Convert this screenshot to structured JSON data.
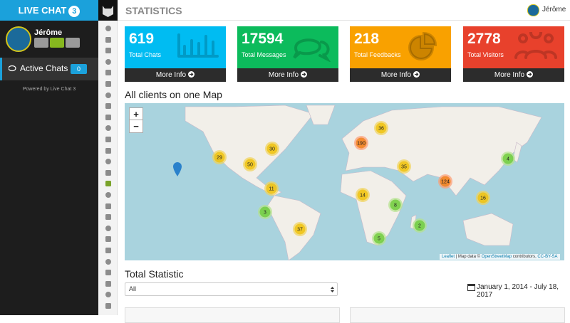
{
  "sidebar": {
    "brand": "LIVE CHAT",
    "brand_badge": "3",
    "user": "Jérôme",
    "active_chats": "Active Chats",
    "active_count": 0,
    "powered": "Powered by Live Chat 3"
  },
  "header": {
    "title": "STATISTICS",
    "user": "Jérôme"
  },
  "stats": [
    {
      "value": 619,
      "label": "Total Chats",
      "link": "More Info"
    },
    {
      "value": 17594,
      "label": "Total Messages",
      "link": "More Info"
    },
    {
      "value": 218,
      "label": "Total Feedbacks",
      "link": "More Info"
    },
    {
      "value": 2778,
      "label": "Total Visitors",
      "link": "More Info"
    }
  ],
  "map": {
    "title": "All clients on one Map",
    "zoom_in": "+",
    "zoom_out": "−",
    "clusters": [
      29,
      30,
      50,
      11,
      3,
      37,
      190,
      36,
      35,
      14,
      8,
      2,
      5,
      124,
      16,
      4
    ],
    "attribution": {
      "leaflet": "Leaflet",
      "text": "| Map data ©",
      "osm": "OpenStreetMap",
      "contributors": "contributors,",
      "license": "CC-BY-SA"
    }
  },
  "total": {
    "title": "Total Statistic",
    "filter": "All",
    "date_range": "January 1, 2014 - July 18, 2017"
  }
}
